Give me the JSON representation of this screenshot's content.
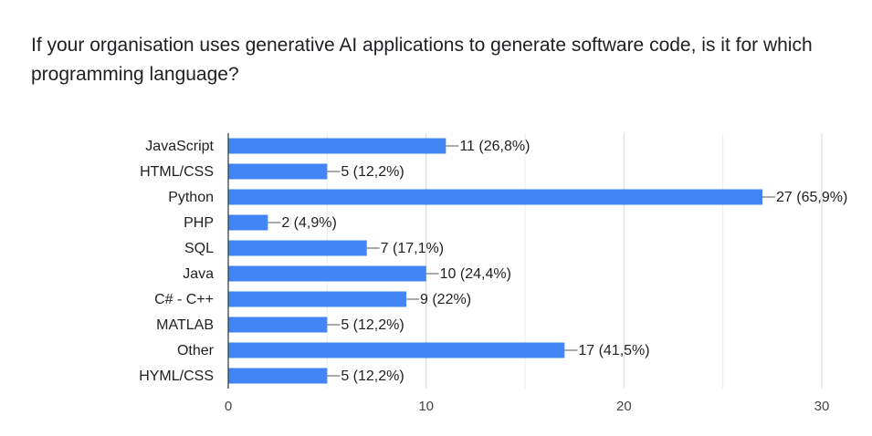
{
  "question": "If your organisation uses generative AI applications to generate software code, is it for which programming language?",
  "chart_data": {
    "type": "bar",
    "orientation": "horizontal",
    "categories": [
      "JavaScript",
      "HTML/CSS",
      "Python",
      "PHP",
      "SQL",
      "Java",
      "C# - C++",
      "MATLAB",
      "Other",
      "HYML/CSS"
    ],
    "values": [
      11,
      5,
      27,
      2,
      7,
      10,
      9,
      5,
      17,
      5
    ],
    "data_labels": [
      "11 (26,8%)",
      "5 (12,2%)",
      "27 (65,9%)",
      "2 (4,9%)",
      "7 (17,1%)",
      "10 (24,4%)",
      "9 (22%)",
      "5 (12,2%)",
      "17 (41,5%)",
      "5 (12,2%)"
    ],
    "x_ticks": [
      "0",
      "10",
      "20",
      "30"
    ],
    "xlim": [
      0,
      30
    ],
    "grid": true,
    "bar_color": "#4285f4"
  }
}
